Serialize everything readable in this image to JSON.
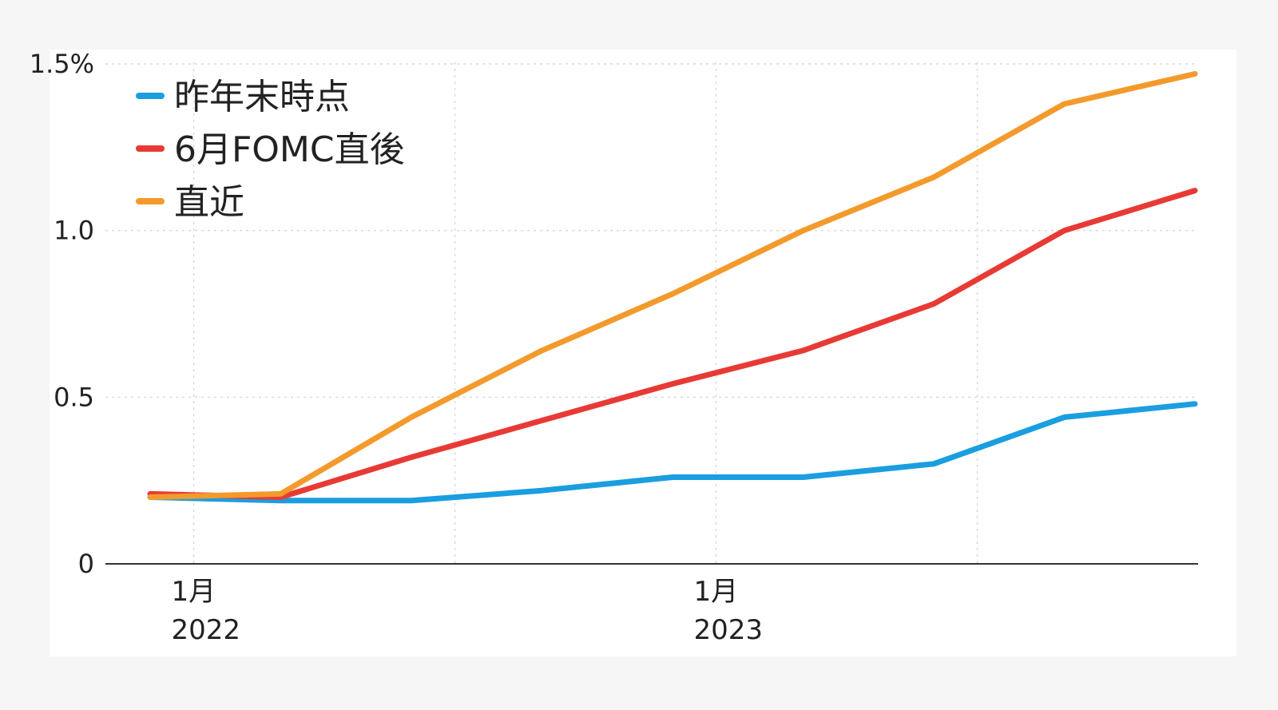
{
  "chart_data": {
    "type": "line",
    "title": "",
    "xlabel": "",
    "ylabel": "",
    "x": [
      "2021-12",
      "2022-03",
      "2022-06",
      "2022-09",
      "2022-12",
      "2023-03",
      "2023-06",
      "2023-09",
      "2023-12"
    ],
    "x_ticks": [
      {
        "at": "2022-01",
        "month_label": "1月",
        "year_label": "2022"
      },
      {
        "at": "2023-01",
        "month_label": "1月",
        "year_label": "2023"
      }
    ],
    "y_ticks": [
      {
        "value": 0,
        "label": "0"
      },
      {
        "value": 0.5,
        "label": "0.5"
      },
      {
        "value": 1.0,
        "label": "1.0"
      },
      {
        "value": 1.5,
        "label": "1.5%"
      }
    ],
    "ylim": [
      0,
      1.5
    ],
    "grid": true,
    "legend_position": "top-left",
    "series": [
      {
        "name": "昨年末時点",
        "color": "#1a9ee0",
        "values": [
          0.2,
          0.19,
          0.19,
          0.22,
          0.26,
          0.26,
          0.3,
          0.44,
          0.48
        ]
      },
      {
        "name": "6月FOMC直後",
        "color": "#e83a35",
        "values": [
          0.21,
          0.2,
          0.32,
          0.43,
          0.54,
          0.64,
          0.78,
          1.0,
          1.12
        ]
      },
      {
        "name": "直近",
        "color": "#f39a2c",
        "values": [
          0.2,
          0.21,
          0.44,
          0.64,
          0.81,
          1.0,
          1.16,
          1.38,
          1.47
        ]
      }
    ]
  }
}
